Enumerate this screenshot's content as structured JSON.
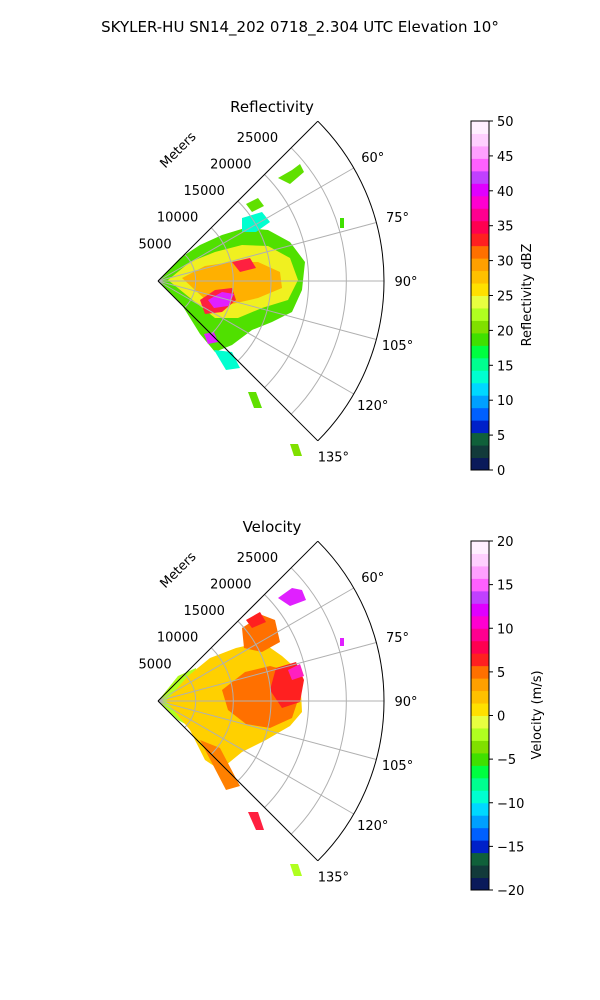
{
  "figure_title": "SKYLER-HU  SN14_202  0718_2.304 UTC Elevation 10°",
  "chart_data": [
    {
      "type": "heatmap",
      "projection": "polar-sector",
      "title": "Reflectivity",
      "range_label": "Meters",
      "range_ticks": [
        5000,
        10000,
        15000,
        20000,
        25000
      ],
      "range_tick_labels": [
        "5000",
        "10000",
        "15000",
        "20000",
        "25000"
      ],
      "range_max": 30000,
      "azimuth_range_deg": [
        45,
        135
      ],
      "azimuth_ticks_deg": [
        60,
        75,
        90,
        105,
        120,
        135
      ],
      "azimuth_tick_labels": [
        "60°",
        "75°",
        "90°",
        "105°",
        "120°",
        "135°"
      ],
      "grid": true,
      "colorbar": {
        "label": "Reflectivity dBZ",
        "min": 0,
        "max": 50,
        "ticks": [
          0,
          5,
          10,
          15,
          20,
          25,
          30,
          35,
          40,
          45,
          50
        ],
        "tick_labels": [
          "0",
          "5",
          "10",
          "15",
          "20",
          "25",
          "30",
          "35",
          "40",
          "45",
          "50"
        ],
        "colors": [
          "#0a1a5a",
          "#123a3a",
          "#10603a",
          "#0020c8",
          "#0060ff",
          "#00a0ff",
          "#00d8ff",
          "#00ffd0",
          "#00ff90",
          "#00ff40",
          "#40e000",
          "#80e000",
          "#b0ff20",
          "#e8ff40",
          "#ffe000",
          "#ffc000",
          "#ffa000",
          "#ff7000",
          "#ff2020",
          "#ff0050",
          "#ff0090",
          "#ff00d0",
          "#e000ff",
          "#c040ff",
          "#ff60ff",
          "#ffa0ff",
          "#ffd0ff",
          "#fff0ff"
        ]
      }
    },
    {
      "type": "heatmap",
      "projection": "polar-sector",
      "title": "Velocity",
      "range_label": "Meters",
      "range_ticks": [
        5000,
        10000,
        15000,
        20000,
        25000
      ],
      "range_tick_labels": [
        "5000",
        "10000",
        "15000",
        "20000",
        "25000"
      ],
      "range_max": 30000,
      "azimuth_range_deg": [
        45,
        135
      ],
      "azimuth_ticks_deg": [
        60,
        75,
        90,
        105,
        120,
        135
      ],
      "azimuth_tick_labels": [
        "60°",
        "75°",
        "90°",
        "105°",
        "120°",
        "135°"
      ],
      "grid": true,
      "colorbar": {
        "label": "Velocity (m/s)",
        "min": -20,
        "max": 20,
        "ticks": [
          -20,
          -15,
          -10,
          -5,
          0,
          5,
          10,
          15,
          20
        ],
        "tick_labels": [
          "−20",
          "−15",
          "−10",
          "−5",
          "0",
          "5",
          "10",
          "15",
          "20"
        ],
        "colors": [
          "#0a1a5a",
          "#123a3a",
          "#10603a",
          "#0020c8",
          "#0060ff",
          "#00a0ff",
          "#00d8ff",
          "#00ffd0",
          "#00ff90",
          "#00ff40",
          "#40e000",
          "#80e000",
          "#b0ff20",
          "#e8ff40",
          "#ffe000",
          "#ffc000",
          "#ffa000",
          "#ff7000",
          "#ff2020",
          "#ff0050",
          "#ff0090",
          "#ff00d0",
          "#e000ff",
          "#c040ff",
          "#ff60ff",
          "#ffa0ff",
          "#ffd0ff",
          "#fff0ff"
        ]
      }
    }
  ]
}
